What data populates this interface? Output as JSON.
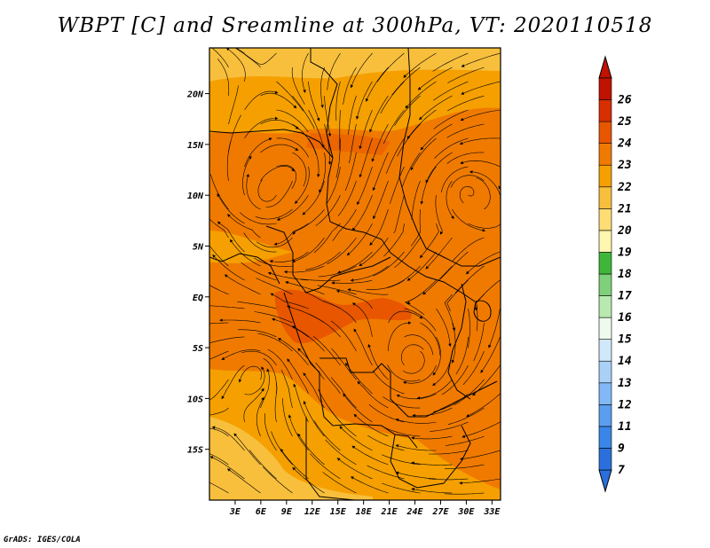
{
  "title": "WBPT [C] and Sreamline at 300hPa, VT: 2020110518",
  "credit": "GrADS: IGES/COLA",
  "map": {
    "lon_range": [
      0,
      34
    ],
    "lat_range": [
      -20,
      24.5
    ],
    "lat_ticks": [
      {
        "value": 20,
        "label": "20N"
      },
      {
        "value": 15,
        "label": "15N"
      },
      {
        "value": 10,
        "label": "10N"
      },
      {
        "value": 5,
        "label": "5N"
      },
      {
        "value": 0,
        "label": "EQ"
      },
      {
        "value": -5,
        "label": "5S"
      },
      {
        "value": -10,
        "label": "10S"
      },
      {
        "value": -15,
        "label": "15S"
      }
    ],
    "lon_ticks": [
      {
        "value": 3,
        "label": "3E"
      },
      {
        "value": 6,
        "label": "6E"
      },
      {
        "value": 9,
        "label": "9E"
      },
      {
        "value": 12,
        "label": "12E"
      },
      {
        "value": 15,
        "label": "15E"
      },
      {
        "value": 18,
        "label": "18E"
      },
      {
        "value": 21,
        "label": "21E"
      },
      {
        "value": 24,
        "label": "24E"
      },
      {
        "value": 27,
        "label": "27E"
      },
      {
        "value": 30,
        "label": "30E"
      },
      {
        "value": 33,
        "label": "33E"
      }
    ]
  },
  "colorbar": {
    "labels": [
      "7",
      "9",
      "11",
      "12",
      "13",
      "14",
      "15",
      "16",
      "17",
      "18",
      "19",
      "20",
      "21",
      "22",
      "23",
      "24",
      "25",
      "26"
    ],
    "colors": [
      "#2a6fdc",
      "#3a86e8",
      "#5a9ef0",
      "#82b8f5",
      "#aad0f8",
      "#d0e8fa",
      "#eefaee",
      "#b8eab0",
      "#7fd07a",
      "#3fb63a",
      "#fff6b0",
      "#fddd74",
      "#f8bf3c",
      "#f5a000",
      "#f07a00",
      "#e85600",
      "#d92e00",
      "#bf1200"
    ]
  }
}
